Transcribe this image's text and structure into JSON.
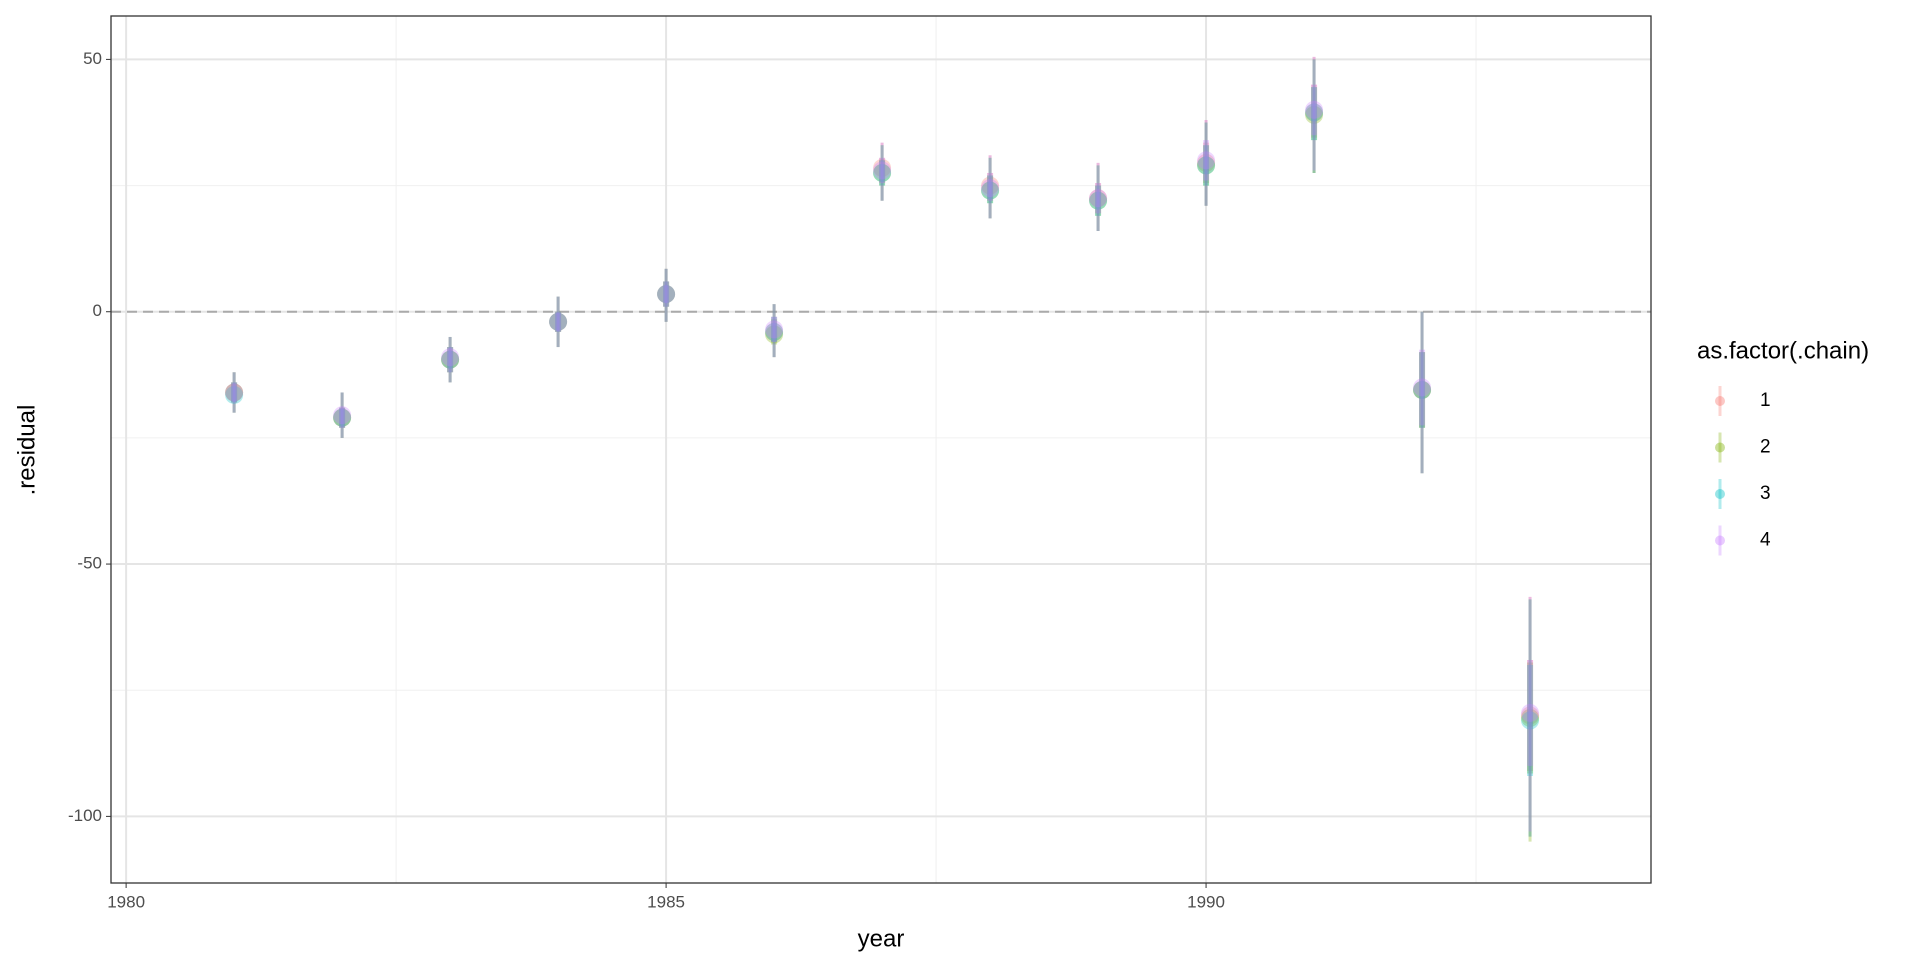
{
  "chart_data": {
    "type": "pointinterval",
    "x_label": "year",
    "y_label": ".residual",
    "legend_title": "as.factor(.chain)",
    "legend": "right",
    "x": [
      1981,
      1982,
      1983,
      1984,
      1985,
      1986,
      1987,
      1988,
      1989,
      1990,
      1991,
      1992,
      1993
    ],
    "xlim": [
      1979.86,
      1994.12
    ],
    "xticks": [
      1980,
      1985,
      1990
    ],
    "ylim": [
      -113.2,
      58.6
    ],
    "yticks": [
      -100,
      -50,
      0,
      50
    ],
    "reference_line": 0,
    "grid": true,
    "series": [
      {
        "name": "1",
        "color": "#F8766D",
        "values": [
          -16,
          -21,
          -9.5,
          -2,
          3.5,
          -4,
          28.5,
          25,
          22.5,
          29.5,
          39.5,
          -15.5,
          -80
        ],
        "lower95": [
          -20,
          -25,
          -14,
          -7,
          -2,
          -9,
          22,
          18.5,
          16,
          21,
          27.5,
          -32,
          -104
        ],
        "upper95": [
          -12,
          -16,
          -5,
          3,
          8.5,
          1.5,
          33.5,
          31,
          29.5,
          38,
          50.5,
          0,
          -56.5
        ],
        "lower66": [
          -18,
          -23,
          -12,
          -4,
          1,
          -6,
          25.5,
          22,
          19.5,
          25.5,
          34.5,
          -23,
          -91
        ],
        "upper66": [
          -14,
          -19,
          -7,
          0,
          6,
          -1,
          30.5,
          27.5,
          25.5,
          33.5,
          45,
          -8,
          -69
        ]
      },
      {
        "name": "2",
        "color": "#7CAE00",
        "values": [
          -16,
          -21,
          -9.5,
          -2,
          3.5,
          -4.5,
          27.5,
          24,
          22,
          29,
          39,
          -15.5,
          -80.5
        ],
        "lower95": [
          -20,
          -25,
          -14,
          -7,
          -2,
          -9,
          22,
          18.5,
          16,
          21,
          27.5,
          -32,
          -105
        ],
        "upper95": [
          -12,
          -16,
          -5,
          3,
          8.5,
          1.5,
          33,
          30.5,
          29,
          37.5,
          50,
          0,
          -57
        ],
        "lower66": [
          -18,
          -23,
          -12,
          -4,
          1,
          -6.5,
          25,
          21.5,
          19,
          25,
          34,
          -23,
          -91.5
        ],
        "upper66": [
          -14,
          -19,
          -7,
          0,
          6,
          -1.5,
          30,
          27,
          25,
          33,
          44.5,
          -8,
          -69.5
        ]
      },
      {
        "name": "3",
        "color": "#00BFC4",
        "values": [
          -16.5,
          -21,
          -9.5,
          -2,
          3.5,
          -4,
          27.5,
          24,
          22,
          29,
          39.5,
          -15.5,
          -81
        ],
        "lower95": [
          -20,
          -25,
          -14,
          -7,
          -2,
          -9,
          22,
          18.5,
          16,
          21,
          27.5,
          -32,
          -104
        ],
        "upper95": [
          -12,
          -16,
          -5,
          3,
          8.5,
          1.5,
          33,
          30.5,
          29,
          37.5,
          50,
          0,
          -57
        ],
        "lower66": [
          -18,
          -23,
          -12,
          -4,
          1,
          -6,
          25,
          21.5,
          19,
          25,
          34,
          -23,
          -92
        ],
        "upper66": [
          -14,
          -19,
          -7,
          0,
          6,
          -1,
          30,
          27,
          25,
          33,
          44.5,
          -8,
          -70
        ]
      },
      {
        "name": "4",
        "color": "#C77CFF",
        "values": [
          -16,
          -20.5,
          -9,
          -2,
          3.5,
          -3.5,
          28,
          24.5,
          22.5,
          30,
          40,
          -15,
          -79.5
        ],
        "lower95": [
          -20,
          -25,
          -14,
          -7,
          -2,
          -9,
          22,
          18.5,
          16,
          21,
          28,
          -32,
          -103
        ],
        "upper95": [
          -12,
          -16,
          -5,
          3,
          8.5,
          1.5,
          33.5,
          31,
          29.5,
          38,
          50.5,
          0,
          -56.5
        ],
        "lower66": [
          -18,
          -23,
          -12,
          -4,
          1,
          -6,
          25.5,
          22,
          19.5,
          26,
          35,
          -22.5,
          -90
        ],
        "upper66": [
          -14,
          -19,
          -7,
          0,
          6,
          -1,
          30.5,
          27.5,
          25.5,
          34,
          45,
          -7.5,
          -69
        ]
      }
    ]
  }
}
